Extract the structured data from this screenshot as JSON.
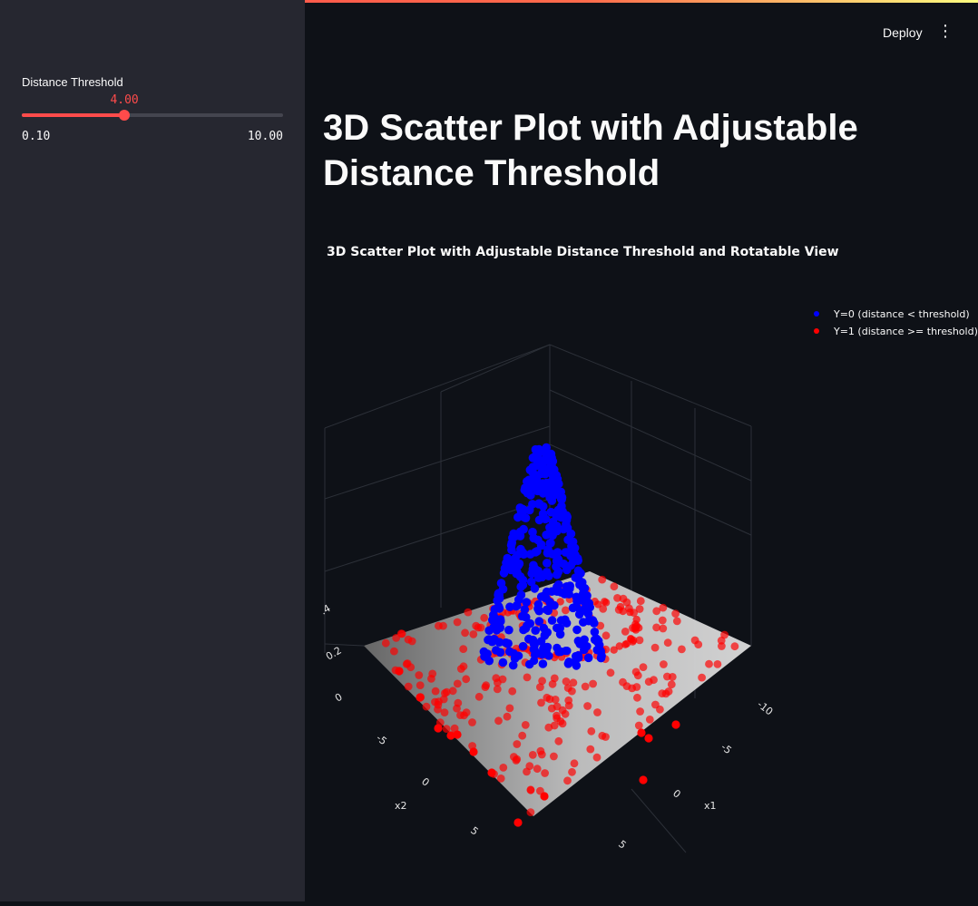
{
  "sidebar": {
    "slider": {
      "label": "Distance Threshold",
      "value": 4.0,
      "value_text": "4.00",
      "min": 0.1,
      "max": 10.0,
      "min_text": "0.10",
      "max_text": "10.00"
    }
  },
  "header": {
    "deploy_label": "Deploy",
    "menu_icon": "vertical-ellipsis-icon"
  },
  "main": {
    "title": "3D Scatter Plot with Adjustable Distance Threshold"
  },
  "colors": {
    "accent": "#ff4b4b",
    "class0": "#0000ff",
    "class1": "#ff0000"
  },
  "chart_data": {
    "type": "scatter",
    "title": "3D Scatter Plot with Adjustable Distance Threshold and Rotatable View",
    "axes": {
      "x1": {
        "label": "x1",
        "ticks": [
          "-10",
          "-5",
          "0",
          "5"
        ]
      },
      "x2": {
        "label": "x2",
        "ticks": [
          "-5",
          "0",
          "5"
        ]
      },
      "z": {
        "label": "",
        "ticks": [
          "0",
          "0.2",
          ".4"
        ]
      }
    },
    "legend_position": "top-right",
    "series": [
      {
        "name": "Y=0 (distance < threshold)",
        "color": "#0000ff"
      },
      {
        "name": "Y=1 (distance >= threshold)",
        "color": "#ff0000"
      }
    ]
  }
}
